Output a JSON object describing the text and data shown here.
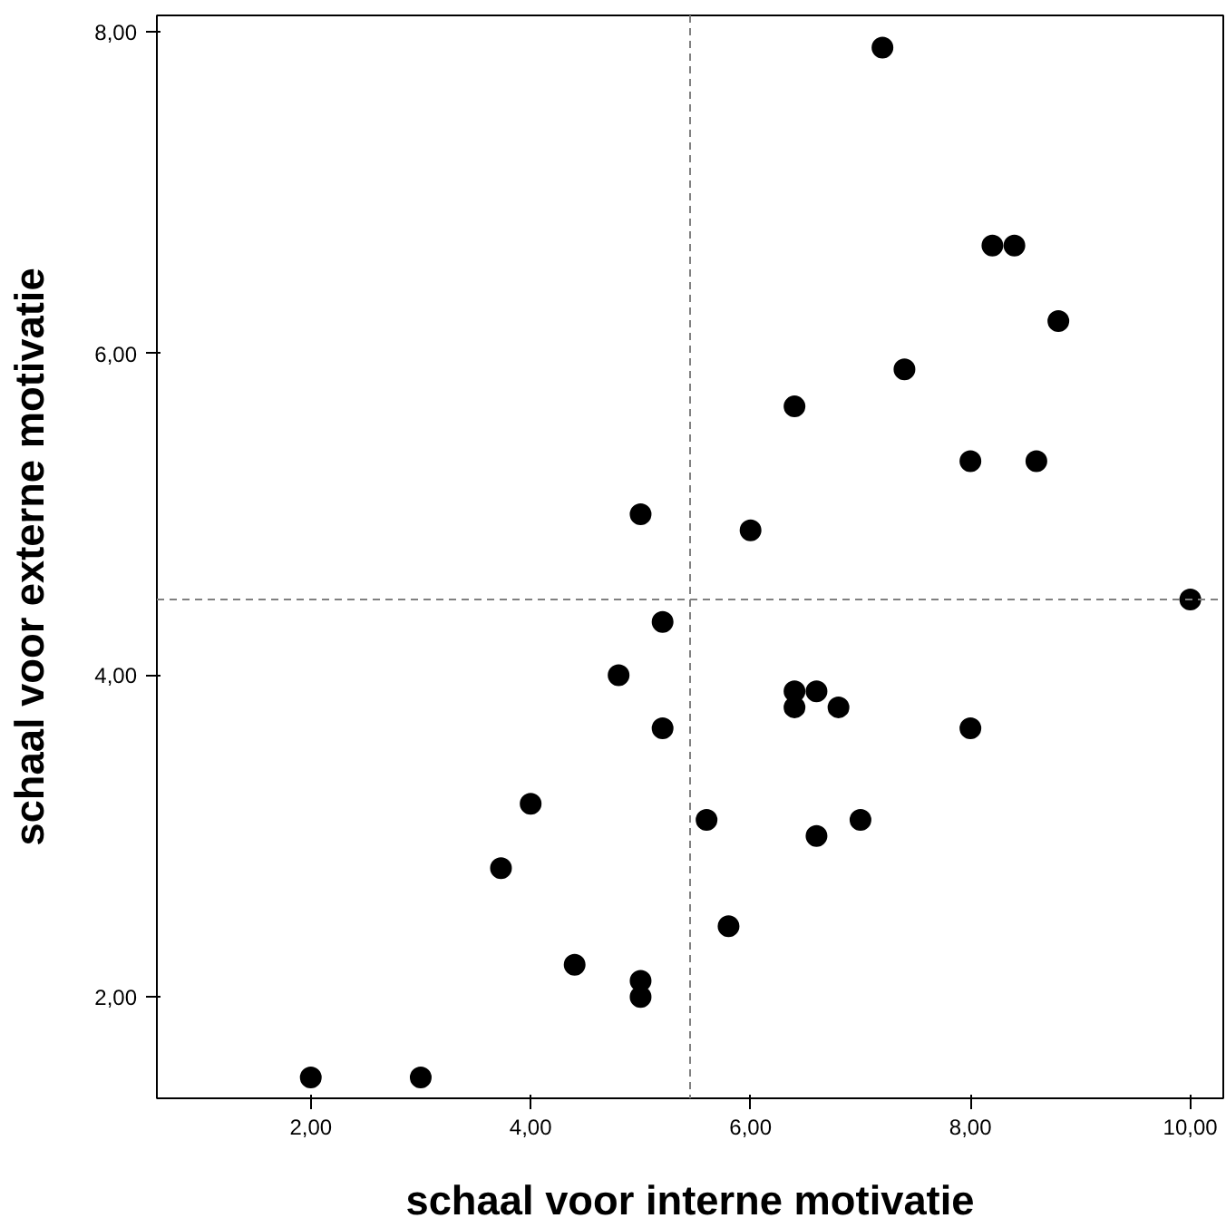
{
  "chart_data": {
    "type": "scatter",
    "xlabel": "schaal voor interne motivatie",
    "ylabel": "schaal voor externe motivatie",
    "x": [
      2.0,
      3.0,
      3.73,
      4.0,
      4.4,
      4.8,
      5.0,
      5.0,
      5.0,
      5.2,
      5.2,
      5.6,
      5.8,
      6.0,
      6.4,
      6.4,
      6.4,
      6.6,
      6.6,
      6.8,
      7.0,
      7.2,
      7.4,
      8.0,
      8.0,
      8.2,
      8.4,
      8.6,
      8.8,
      10.0
    ],
    "values": [
      1.5,
      1.5,
      2.8,
      3.2,
      2.2,
      4.0,
      5.0,
      2.1,
      2.0,
      4.33,
      3.67,
      3.1,
      2.44,
      4.9,
      5.67,
      3.9,
      3.8,
      3.9,
      3.0,
      3.8,
      3.1,
      7.9,
      5.9,
      5.33,
      3.67,
      6.67,
      6.67,
      5.33,
      6.2,
      4.47
    ],
    "color": "#000000",
    "marker": "circle",
    "xlim": [
      0.6,
      10.3
    ],
    "ylim": [
      1.37,
      8.1
    ],
    "xticks": [
      {
        "value": 2,
        "label": "2,00"
      },
      {
        "value": 4,
        "label": "4,00"
      },
      {
        "value": 6,
        "label": "6,00"
      },
      {
        "value": 8,
        "label": "8,00"
      },
      {
        "value": 10,
        "label": "10,00"
      }
    ],
    "yticks": [
      {
        "value": 2,
        "label": "2,00"
      },
      {
        "value": 4,
        "label": "4,00"
      },
      {
        "value": 6,
        "label": "6,00"
      },
      {
        "value": 8,
        "label": "8,00"
      }
    ],
    "ref_lines": [
      {
        "axis": "x",
        "value": 5.45,
        "color": "#808080",
        "line_style": "dashed"
      },
      {
        "axis": "y",
        "value": 4.47,
        "color": "#808080",
        "line_style": "dashed"
      }
    ],
    "grid": false
  }
}
